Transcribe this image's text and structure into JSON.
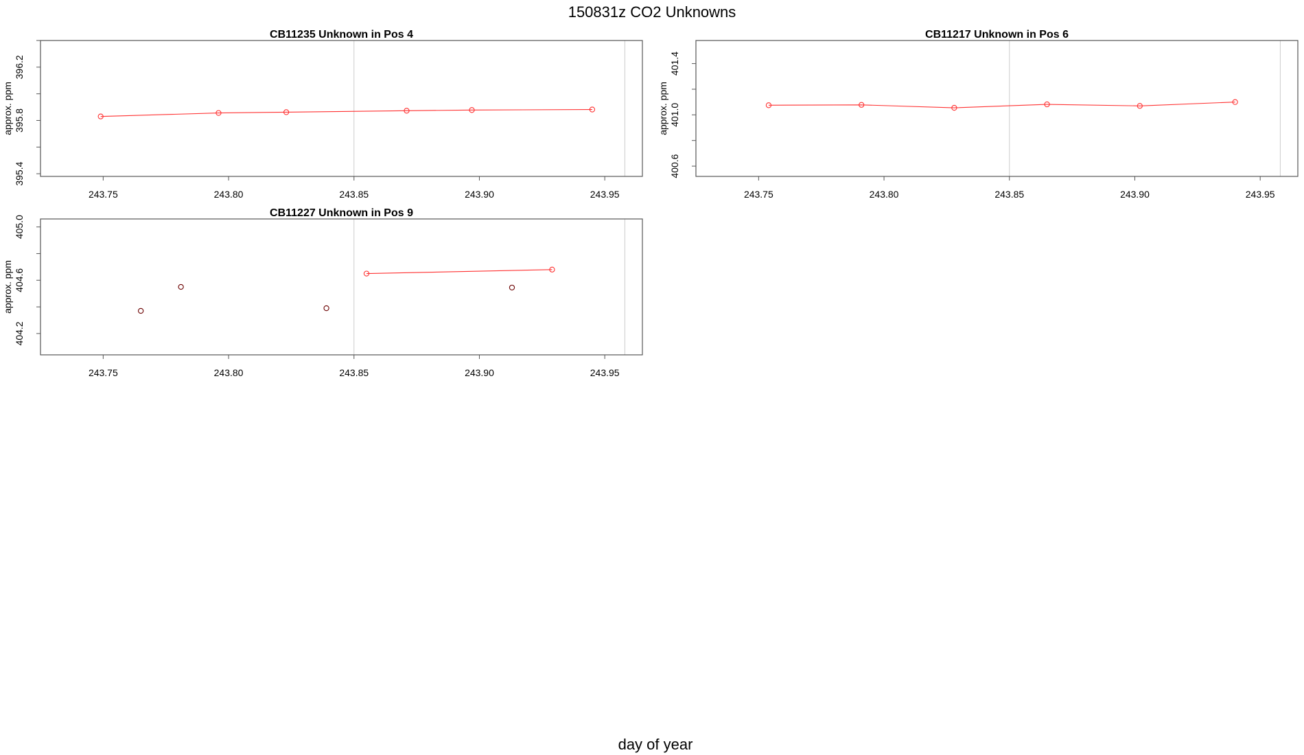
{
  "figure": {
    "title": "150831z  CO2 Unknowns",
    "xlabel": "day of year"
  },
  "chart_data": [
    {
      "type": "scatter",
      "title": "CB11235    Unknown in Pos 4",
      "ylabel": "approx. ppm",
      "xlim": [
        243.725,
        243.965
      ],
      "ylim": [
        395.38,
        396.4
      ],
      "xticks": [
        "243.75",
        "243.80",
        "243.85",
        "243.90",
        "243.95"
      ],
      "yticks": [
        "395.4",
        "395.8",
        "396.2"
      ],
      "vlines": [
        243.85,
        243.958
      ],
      "series": [
        {
          "x": [
            243.749,
            243.796,
            243.823,
            243.871,
            243.897,
            243.945
          ],
          "y": [
            395.83,
            395.856,
            395.862,
            395.873,
            395.878,
            395.882
          ],
          "color": "#ff3030",
          "connected": true
        }
      ]
    },
    {
      "type": "scatter",
      "title": "CB11217    Unknown in Pos 6",
      "ylabel": "approx. ppm",
      "xlim": [
        243.725,
        243.965
      ],
      "ylim": [
        400.52,
        401.58
      ],
      "xticks": [
        "243.75",
        "243.80",
        "243.85",
        "243.90",
        "243.95"
      ],
      "yticks": [
        "400.6",
        "401.0",
        "401.4"
      ],
      "vlines": [
        243.85,
        243.958
      ],
      "series": [
        {
          "x": [
            243.754,
            243.791,
            243.828,
            243.865,
            243.902,
            243.94
          ],
          "y": [
            401.075,
            401.078,
            401.055,
            401.082,
            401.07,
            401.1
          ],
          "color": "#ff3030",
          "connected": true
        }
      ]
    },
    {
      "type": "scatter",
      "title": "CB11227    Unknown in Pos 9",
      "ylabel": "approx. ppm",
      "xlim": [
        243.725,
        243.965
      ],
      "ylim": [
        404.04,
        405.06
      ],
      "xticks": [
        "243.75",
        "243.80",
        "243.85",
        "243.90",
        "243.95"
      ],
      "yticks": [
        "404.2",
        "404.6",
        "405.0"
      ],
      "vlines": [
        243.85,
        243.958
      ],
      "series": [
        {
          "x": [
            243.765,
            243.781,
            243.839,
            243.913
          ],
          "y": [
            404.37,
            404.55,
            404.39,
            404.545
          ],
          "color": "#6b0000",
          "connected": false
        },
        {
          "x": [
            243.855,
            243.929
          ],
          "y": [
            404.65,
            404.68
          ],
          "color": "#ff3030",
          "connected": true
        }
      ]
    }
  ]
}
